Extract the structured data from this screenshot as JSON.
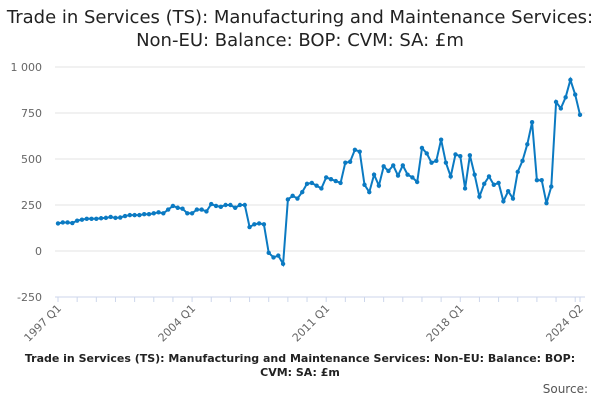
{
  "chart_data": {
    "type": "line",
    "title": "Trade in Services (TS): Manufacturing and Maintenance Services: Non-EU: Balance: BOP: CVM: SA: £m",
    "xlabel": "",
    "ylabel": "",
    "x_start": "1997 Q1",
    "x_end": "2024 Q2",
    "x_tick_labels": [
      "1997 Q1",
      "2004 Q1",
      "2011 Q1",
      "2018 Q1",
      "2024 Q2"
    ],
    "x_tick_index": [
      0,
      28,
      56,
      84,
      109
    ],
    "y_tick_labels": [
      "1 000",
      "750",
      "500",
      "250",
      "0",
      "-250"
    ],
    "y_ticks": [
      1000,
      750,
      500,
      250,
      0,
      -250
    ],
    "ylim": [
      -250,
      1000
    ],
    "grid": true,
    "series_color": "#0b7ac2",
    "values": [
      150,
      155,
      155,
      152,
      165,
      170,
      175,
      175,
      175,
      178,
      180,
      185,
      180,
      182,
      190,
      195,
      195,
      195,
      200,
      200,
      205,
      210,
      205,
      225,
      245,
      235,
      230,
      205,
      205,
      225,
      225,
      215,
      255,
      245,
      240,
      250,
      250,
      235,
      250,
      250,
      130,
      145,
      150,
      145,
      -10,
      -35,
      -25,
      -70,
      280,
      300,
      285,
      320,
      365,
      370,
      355,
      340,
      400,
      390,
      380,
      370,
      480,
      485,
      550,
      540,
      360,
      320,
      415,
      355,
      460,
      435,
      465,
      410,
      465,
      415,
      400,
      375,
      560,
      530,
      480,
      490,
      605,
      480,
      405,
      525,
      515,
      340,
      520,
      415,
      295,
      365,
      405,
      360,
      370,
      270,
      325,
      285,
      430,
      490,
      580,
      700,
      385,
      385,
      260,
      350,
      810,
      775,
      835,
      930,
      850,
      740
    ]
  },
  "footer": {
    "title": "Trade in Services (TS): Manufacturing and Maintenance Services: Non-EU: Balance: BOP: CVM: SA: £m",
    "source": "Source:"
  }
}
